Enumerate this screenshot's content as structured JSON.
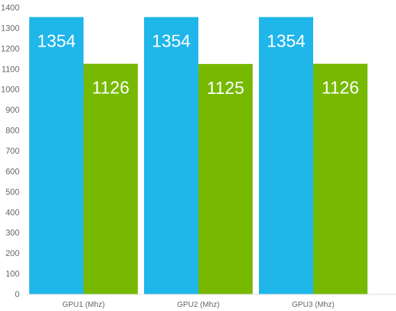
{
  "chart_data": {
    "type": "bar",
    "categories": [
      "GPU1 (Mhz)",
      "GPU2 (Mhz)",
      "GPU3 (Mhz)"
    ],
    "series": [
      {
        "values": [
          1354,
          1354,
          1354
        ],
        "color": "#1fb6ea"
      },
      {
        "values": [
          1126,
          1125,
          1126
        ],
        "color": "#76b900"
      }
    ],
    "ylim": [
      0,
      1400
    ],
    "yticks": [
      0,
      100,
      200,
      300,
      400,
      500,
      600,
      700,
      800,
      900,
      1000,
      1100,
      1200,
      1300,
      1400
    ],
    "grid": false,
    "title": "",
    "xlabel": "",
    "ylabel": ""
  }
}
